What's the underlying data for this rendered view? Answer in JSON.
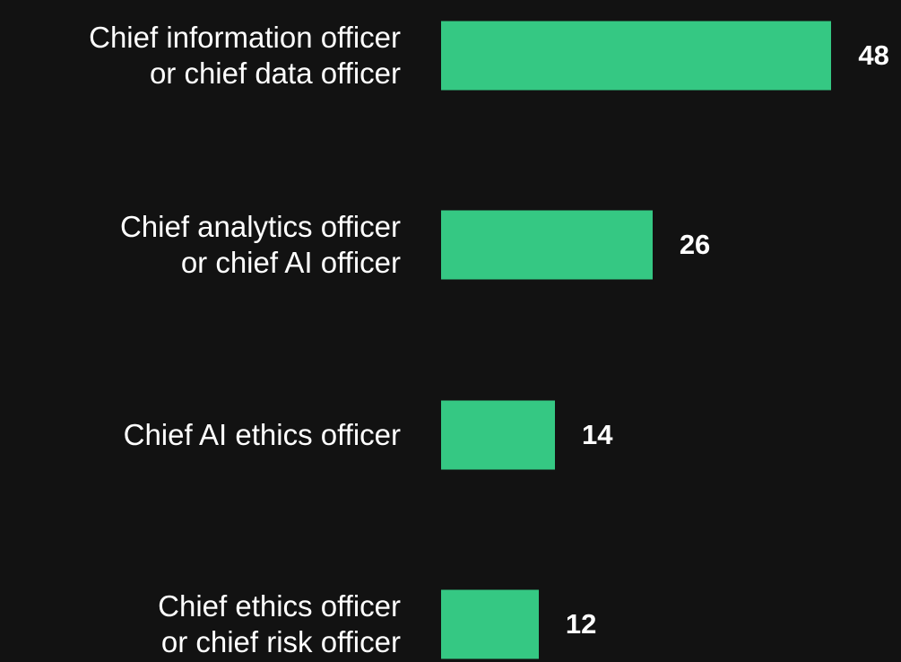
{
  "chart_data": {
    "type": "bar",
    "orientation": "horizontal",
    "categories": [
      "Chief information officer\nor chief data officer",
      "Chief analytics officer\nor chief AI officer",
      "Chief AI ethics officer",
      "Chief ethics officer\nor chief risk officer"
    ],
    "values": [
      48,
      26,
      14,
      12
    ],
    "color": "#35c883"
  }
}
